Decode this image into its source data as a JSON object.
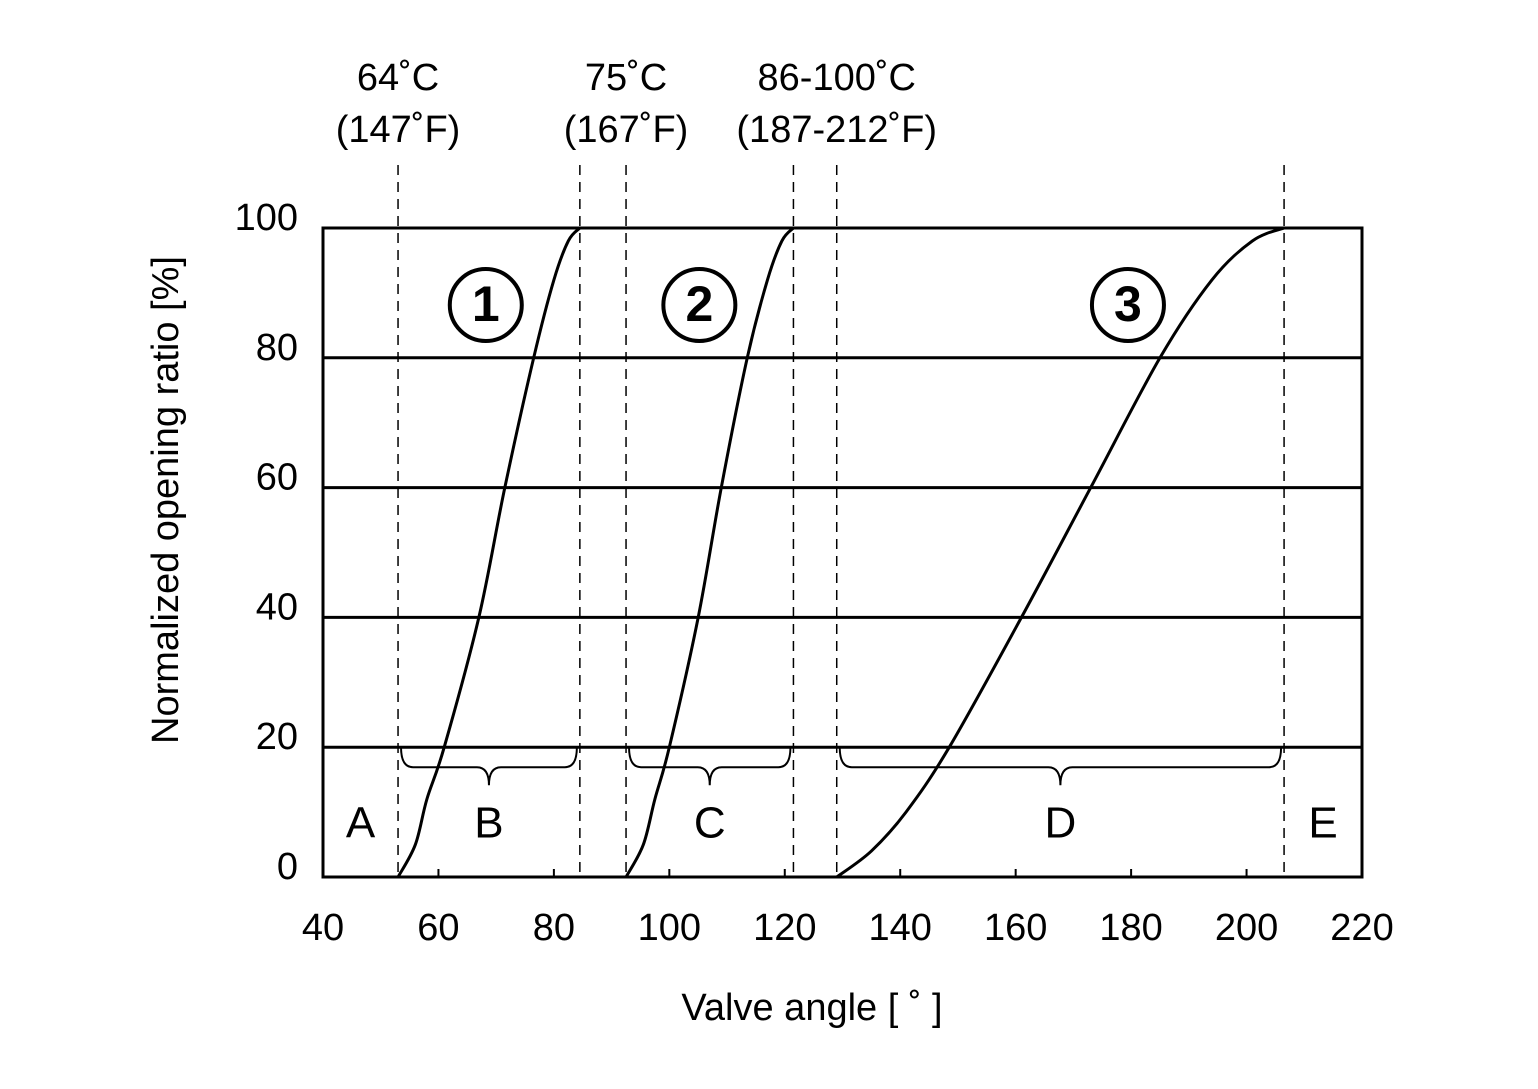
{
  "chart_data": {
    "type": "line",
    "x_label": "Valve angle [ ˚ ]",
    "y_label": "Normalized opening ratio [%]",
    "xlim": [
      40,
      220
    ],
    "xticks": [
      40,
      60,
      80,
      100,
      120,
      140,
      160,
      180,
      200,
      220
    ],
    "ylim": [
      0,
      100
    ],
    "yticks": [
      0,
      20,
      40,
      60,
      80,
      100
    ],
    "grid": true,
    "series": [
      {
        "name": "1",
        "color": "#000000",
        "x": [
          53,
          56,
          58,
          61,
          67,
          71.5,
          76.5,
          80,
          82.5,
          84.5
        ],
        "values": [
          0,
          5,
          12,
          20,
          40,
          60,
          80,
          92,
          98,
          100
        ]
      },
      {
        "name": "2",
        "color": "#000000",
        "x": [
          92.5,
          95.5,
          97.5,
          100,
          105,
          109,
          113.5,
          117,
          119.5,
          121.5
        ],
        "values": [
          0,
          5,
          12,
          20,
          40,
          60,
          80,
          92,
          98,
          100
        ]
      },
      {
        "name": "3",
        "color": "#000000",
        "x": [
          129,
          135,
          141,
          148.5,
          161,
          173,
          185,
          194,
          201,
          206.5
        ],
        "values": [
          0,
          4,
          10,
          20,
          40,
          60,
          80,
          92,
          98,
          100
        ]
      }
    ],
    "dashed_lines": [
      53,
      84.5,
      92.5,
      121.5,
      129,
      206.5
    ],
    "temperature_labels": [
      [
        "64˚C",
        "(147˚F)"
      ],
      [
        "75˚C",
        "(167˚F)"
      ],
      [
        "86-100˚C",
        "(187-212˚F)"
      ]
    ],
    "zones": [
      "A",
      "B",
      "C",
      "D",
      "E"
    ]
  }
}
